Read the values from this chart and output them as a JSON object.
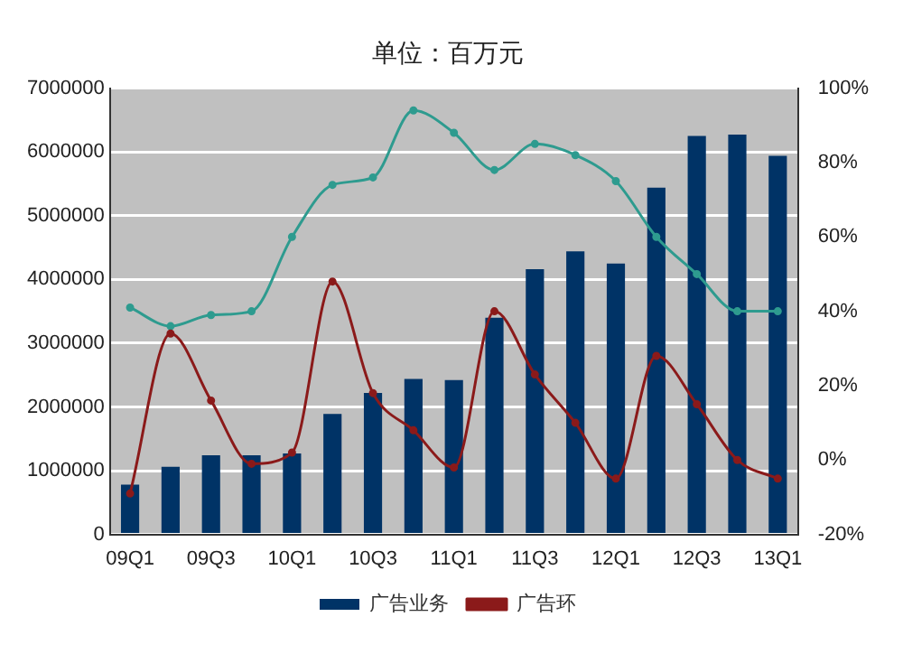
{
  "chart_data": {
    "type": "bar",
    "title": "单位：百万元",
    "categories": [
      "09Q1",
      null,
      "09Q3",
      null,
      "10Q1",
      null,
      "10Q3",
      null,
      "11Q1",
      null,
      "11Q3",
      null,
      "12Q1",
      null,
      "12Q3",
      null,
      "13Q1"
    ],
    "series": [
      {
        "name": "广告业务",
        "color": "#003366",
        "values": [
          780000,
          1060000,
          1240000,
          1240000,
          1270000,
          1890000,
          2220000,
          2440000,
          2420000,
          3400000,
          4160000,
          4440000,
          4250000,
          5440000,
          6250000,
          6270000,
          5940000
        ]
      },
      {
        "name": "广告环",
        "type": "line",
        "axis": "y2",
        "color": "#8b1a1a",
        "values": [
          -9,
          34,
          16,
          -1,
          2,
          48,
          18,
          8,
          -2,
          40,
          23,
          10,
          -5,
          28,
          15,
          0,
          -5
        ]
      },
      {
        "type": "line",
        "axis": "y2",
        "color": "#2e9b8f",
        "values": [
          41,
          36,
          39,
          40,
          60,
          74,
          76,
          94,
          88,
          78,
          85,
          82,
          75,
          60,
          50,
          40,
          40
        ]
      }
    ],
    "ylim": [
      0,
      7000000
    ],
    "yticks": [
      0,
      1000000,
      2000000,
      3000000,
      4000000,
      5000000,
      6000000,
      7000000
    ],
    "y2lim": [
      -20,
      100
    ],
    "y2ticks": [
      {
        "value": -20,
        "label": "-20%"
      },
      {
        "value": 0,
        "label": "0%"
      },
      {
        "value": 20,
        "label": "20%"
      },
      {
        "value": 40,
        "label": "40%"
      },
      {
        "value": 60,
        "label": "60%"
      },
      {
        "value": 80,
        "label": "80%"
      },
      {
        "value": 100,
        "label": "100%"
      }
    ],
    "grid": "y",
    "legend": "bottom",
    "marker": "circle"
  }
}
